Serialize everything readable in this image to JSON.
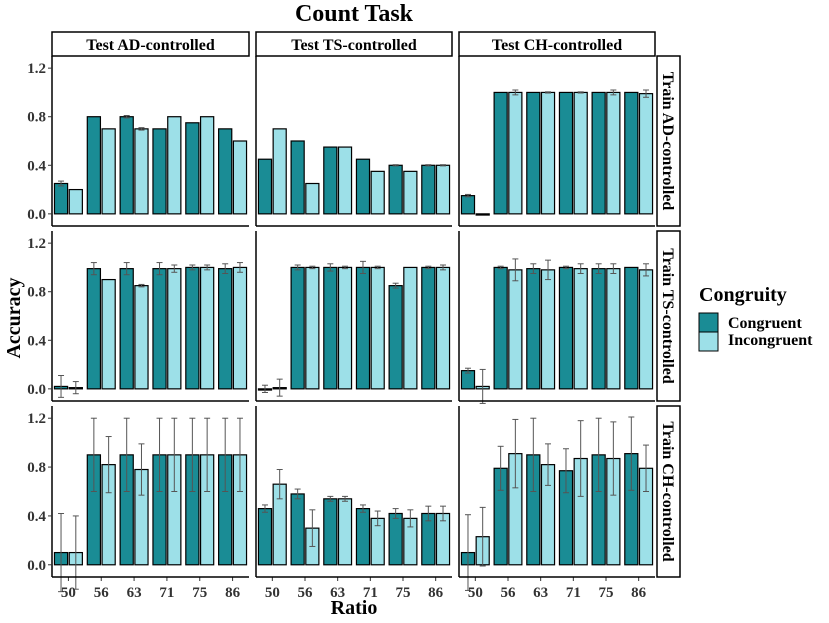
{
  "chart_data": {
    "type": "bar",
    "title": "Count Task",
    "xlabel": "Ratio",
    "ylabel": "Accuracy",
    "categories": [
      "50",
      "56",
      "63",
      "71",
      "75",
      "86"
    ],
    "yticks": [
      "0.0",
      "0.4",
      "0.8",
      "1.2"
    ],
    "ylim": [
      -0.1,
      1.3
    ],
    "column_facets": [
      "Test AD-controlled",
      "Test TS-controlled",
      "Test CH-controlled"
    ],
    "row_facets": [
      "Train AD-controlled",
      "Train TS-controlled",
      "Train CH-controlled"
    ],
    "legend": {
      "title": "Congruity",
      "placement": "right",
      "entries": [
        {
          "name": "Congruent",
          "color": "#1a8c95"
        },
        {
          "name": "Incongruent",
          "color": "#9de0e8"
        }
      ]
    },
    "panels": [
      [
        {
          "congruent": [
            0.25,
            0.8,
            0.8,
            0.7,
            0.75,
            0.7
          ],
          "incongruent": [
            0.2,
            0.7,
            0.7,
            0.8,
            0.8,
            0.6
          ],
          "congruent_err": [
            0.02,
            0,
            0.01,
            0,
            0,
            0
          ],
          "incongruent_err": [
            0,
            0,
            0.01,
            0,
            0,
            0
          ]
        },
        {
          "congruent": [
            0.45,
            0.6,
            0.55,
            0.45,
            0.4,
            0.4
          ],
          "incongruent": [
            0.7,
            0.25,
            0.55,
            0.35,
            0.35,
            0.4
          ],
          "congruent_err": [
            0,
            0,
            0,
            0,
            0.005,
            0.005
          ],
          "incongruent_err": [
            0,
            0,
            0,
            0,
            0,
            0.005
          ]
        },
        {
          "congruent": [
            0.15,
            1.0,
            1.0,
            1.0,
            1.0,
            1.0
          ],
          "incongruent": [
            0.0,
            1.0,
            1.0,
            1.0,
            1.0,
            0.99
          ],
          "congruent_err": [
            0.01,
            0,
            0,
            0,
            0,
            0
          ],
          "incongruent_err": [
            0,
            0.02,
            0.005,
            0.005,
            0.02,
            0.03
          ]
        }
      ],
      [
        {
          "congruent": [
            0.02,
            0.99,
            0.99,
            0.99,
            1.0,
            0.99
          ],
          "incongruent": [
            0.01,
            0.9,
            0.85,
            0.99,
            1.0,
            1.0
          ],
          "congruent_err": [
            0.09,
            0.05,
            0.05,
            0.05,
            0.02,
            0.04
          ],
          "incongruent_err": [
            0.05,
            0,
            0.01,
            0.03,
            0.02,
            0.04
          ]
        },
        {
          "congruent": [
            0.0,
            1.0,
            1.0,
            1.0,
            0.85,
            1.0
          ],
          "incongruent": [
            0.01,
            1.0,
            1.0,
            1.0,
            1.0,
            1.0
          ],
          "congruent_err": [
            0.03,
            0.02,
            0.03,
            0.05,
            0.02,
            0.01
          ],
          "incongruent_err": [
            0.07,
            0.01,
            0.01,
            0.01,
            0,
            0.02
          ]
        },
        {
          "congruent": [
            0.15,
            1.0,
            0.99,
            1.0,
            0.99,
            1.0
          ],
          "incongruent": [
            0.02,
            0.98,
            0.98,
            0.99,
            0.99,
            0.98
          ],
          "congruent_err": [
            0.02,
            0.01,
            0.04,
            0.01,
            0.04,
            0
          ],
          "incongruent_err": [
            0.14,
            0.09,
            0.08,
            0.04,
            0.04,
            0.05
          ]
        }
      ],
      [
        {
          "congruent": [
            0.1,
            0.9,
            0.9,
            0.9,
            0.9,
            0.9
          ],
          "incongruent": [
            0.1,
            0.82,
            0.78,
            0.9,
            0.9,
            0.9
          ],
          "congruent_err": [
            0.32,
            0.3,
            0.3,
            0.3,
            0.3,
            0.3
          ],
          "incongruent_err": [
            0.3,
            0.23,
            0.21,
            0.3,
            0.3,
            0.3
          ]
        },
        {
          "congruent": [
            0.46,
            0.58,
            0.54,
            0.46,
            0.42,
            0.42
          ],
          "incongruent": [
            0.66,
            0.3,
            0.54,
            0.38,
            0.38,
            0.42
          ],
          "congruent_err": [
            0.03,
            0.04,
            0.02,
            0.03,
            0.04,
            0.06
          ],
          "incongruent_err": [
            0.12,
            0.15,
            0.02,
            0.06,
            0.07,
            0.06
          ]
        },
        {
          "congruent": [
            0.1,
            0.79,
            0.9,
            0.77,
            0.9,
            0.91
          ],
          "incongruent": [
            0.23,
            0.91,
            0.82,
            0.87,
            0.87,
            0.79
          ],
          "congruent_err": [
            0.31,
            0.18,
            0.3,
            0.18,
            0.3,
            0.3
          ],
          "incongruent_err": [
            0.24,
            0.28,
            0.17,
            0.31,
            0.3,
            0.19
          ]
        }
      ]
    ]
  }
}
